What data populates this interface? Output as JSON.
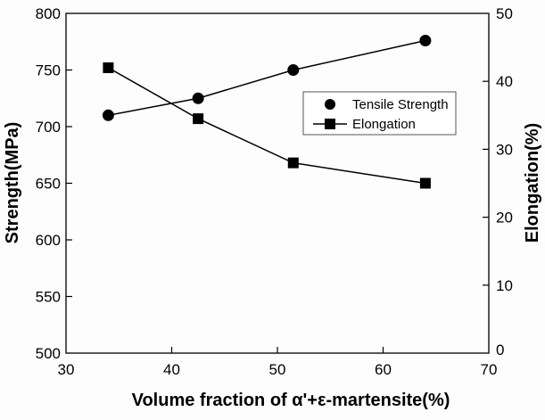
{
  "chart_data": {
    "type": "line",
    "title": "",
    "xlabel": "Volume fraction of α'+ε-martensite(%)",
    "ylabel_left": "Strength(MPa)",
    "ylabel_right": "Elongation(%)",
    "xlim": [
      30,
      70
    ],
    "ylim_left": [
      500,
      800
    ],
    "ylim_right": [
      0,
      50
    ],
    "x_ticks": [
      "30",
      "40",
      "50",
      "60",
      "70"
    ],
    "y_ticks_left": [
      "500",
      "550",
      "600",
      "650",
      "700",
      "750",
      "800"
    ],
    "y_ticks_right": [
      "0",
      "10",
      "20",
      "30",
      "40",
      "50"
    ],
    "grid": false,
    "legend_position": "upper-right",
    "x": [
      34,
      42.5,
      51.5,
      64
    ],
    "series": [
      {
        "name": "Tensile Strength",
        "axis": "left",
        "marker": "circle",
        "values": [
          710,
          725,
          750,
          776
        ]
      },
      {
        "name": "Elongation",
        "axis": "right",
        "marker": "square",
        "values": [
          42,
          34.5,
          28,
          25
        ]
      }
    ]
  }
}
